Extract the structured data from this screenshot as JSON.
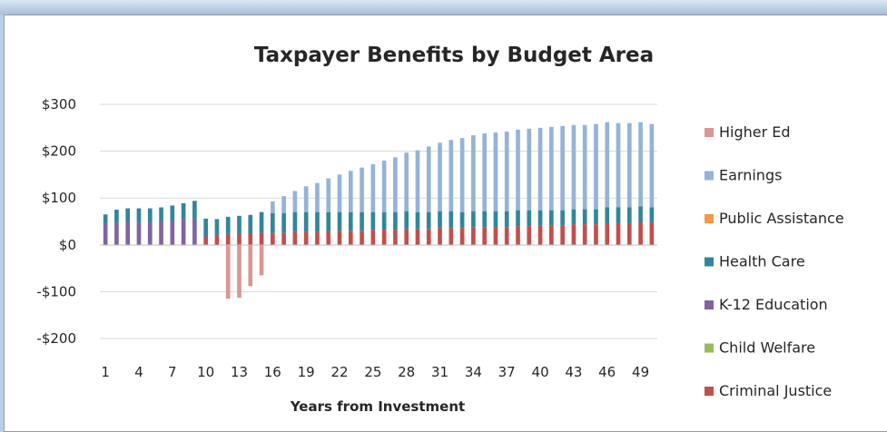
{
  "chart_data": {
    "type": "bar",
    "stacked": true,
    "title": "Taxpayer Benefits by Budget Area",
    "xlabel": "Years from Investment",
    "ylabel": "",
    "ylim": [
      -200,
      300
    ],
    "yticks": [
      300,
      200,
      100,
      0,
      -100,
      -200
    ],
    "ytick_labels": [
      "$300",
      "$200",
      "$100",
      "$0",
      "-$100",
      "-$200"
    ],
    "xtick_labels": [
      "1",
      "4",
      "7",
      "10",
      "13",
      "16",
      "19",
      "22",
      "25",
      "28",
      "31",
      "34",
      "37",
      "40",
      "43",
      "46",
      "49"
    ],
    "categories": [
      "1",
      "2",
      "3",
      "4",
      "5",
      "6",
      "7",
      "8",
      "9",
      "10",
      "11",
      "12",
      "13",
      "14",
      "15",
      "16",
      "17",
      "18",
      "19",
      "20",
      "21",
      "22",
      "23",
      "24",
      "25",
      "26",
      "27",
      "28",
      "29",
      "30",
      "31",
      "32",
      "33",
      "34",
      "35",
      "36",
      "37",
      "38",
      "39",
      "40",
      "41",
      "42",
      "43",
      "44",
      "45",
      "46",
      "47",
      "48",
      "49",
      "50"
    ],
    "legend_position": "right",
    "gridlines": true,
    "series": [
      {
        "name": "Higher Ed",
        "color": "#d99694",
        "values": [
          0,
          0,
          0,
          0,
          0,
          0,
          0,
          0,
          0,
          0,
          0,
          -115,
          -113,
          -88,
          -65,
          0,
          0,
          0,
          0,
          0,
          0,
          0,
          0,
          0,
          0,
          0,
          0,
          0,
          0,
          0,
          0,
          0,
          0,
          0,
          0,
          0,
          0,
          0,
          0,
          0,
          0,
          0,
          0,
          0,
          0,
          0,
          0,
          0,
          0,
          0
        ]
      },
      {
        "name": "Earnings",
        "color": "#95b3d7",
        "values": [
          0,
          0,
          0,
          0,
          0,
          0,
          0,
          0,
          0,
          0,
          0,
          0,
          0,
          0,
          0,
          25,
          36,
          45,
          55,
          62,
          72,
          80,
          88,
          95,
          102,
          110,
          117,
          125,
          132,
          140,
          146,
          152,
          158,
          162,
          166,
          168,
          170,
          172,
          174,
          176,
          178,
          180,
          180,
          180,
          182,
          182,
          180,
          180,
          180,
          178
        ]
      },
      {
        "name": "Public Assistance",
        "color": "#f79646",
        "values": [
          0,
          0,
          0,
          0,
          0,
          0,
          0,
          0,
          0,
          0,
          0,
          0,
          0,
          0,
          0,
          0,
          0,
          0,
          0,
          0,
          0,
          0,
          0,
          0,
          0,
          0,
          0,
          0,
          0,
          0,
          0,
          0,
          0,
          0,
          0,
          0,
          0,
          0,
          0,
          0,
          0,
          0,
          0,
          0,
          0,
          0,
          0,
          0,
          0,
          0
        ]
      },
      {
        "name": "Health Care",
        "color": "#31869b",
        "values": [
          20,
          28,
          30,
          30,
          30,
          30,
          32,
          34,
          38,
          38,
          35,
          38,
          40,
          40,
          44,
          42,
          42,
          42,
          42,
          42,
          42,
          40,
          40,
          40,
          38,
          38,
          38,
          38,
          36,
          36,
          36,
          36,
          34,
          34,
          34,
          34,
          34,
          34,
          34,
          32,
          32,
          32,
          32,
          32,
          32,
          34,
          34,
          34,
          34,
          32
        ]
      },
      {
        "name": "K-12 Education",
        "color": "#8064a2",
        "values": [
          45,
          47,
          48,
          48,
          48,
          50,
          52,
          55,
          56,
          0,
          0,
          0,
          0,
          0,
          0,
          0,
          0,
          0,
          0,
          0,
          0,
          0,
          0,
          0,
          0,
          0,
          0,
          0,
          0,
          0,
          0,
          0,
          0,
          0,
          0,
          0,
          0,
          0,
          0,
          0,
          0,
          0,
          0,
          0,
          0,
          0,
          0,
          0,
          0,
          0
        ]
      },
      {
        "name": "Child Welfare",
        "color": "#9bbb59",
        "values": [
          0,
          0,
          0,
          0,
          0,
          0,
          0,
          0,
          0,
          0,
          0,
          0,
          0,
          0,
          0,
          0,
          0,
          0,
          0,
          0,
          0,
          0,
          0,
          0,
          0,
          0,
          0,
          0,
          0,
          0,
          0,
          0,
          0,
          0,
          0,
          0,
          0,
          0,
          0,
          0,
          0,
          0,
          0,
          0,
          0,
          0,
          0,
          0,
          0,
          0
        ]
      },
      {
        "name": "Criminal Justice",
        "color": "#c0504d",
        "values": [
          0,
          0,
          0,
          0,
          0,
          0,
          0,
          0,
          0,
          18,
          20,
          22,
          22,
          24,
          26,
          26,
          26,
          28,
          28,
          28,
          28,
          30,
          30,
          30,
          32,
          32,
          32,
          34,
          34,
          34,
          36,
          36,
          36,
          38,
          38,
          38,
          38,
          40,
          40,
          42,
          42,
          42,
          44,
          44,
          44,
          46,
          46,
          46,
          48,
          48
        ]
      }
    ],
    "draw_order": [
      "Criminal Justice",
      "Child Welfare",
      "K-12 Education",
      "Health Care",
      "Public Assistance",
      "Earnings",
      "Higher Ed"
    ]
  }
}
